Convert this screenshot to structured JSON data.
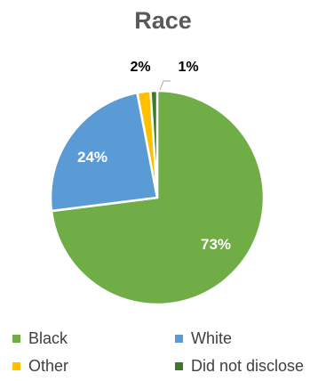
{
  "chart_data": {
    "type": "pie",
    "title": "Race",
    "categories": [
      "Black",
      "White",
      "Other",
      "Did not disclose"
    ],
    "values": [
      73,
      24,
      2,
      1
    ],
    "data_labels": [
      "73%",
      "24%",
      "2%",
      "1%"
    ],
    "colors": [
      "#70AD47",
      "#5B9BD5",
      "#FFC000",
      "#3D7A28"
    ],
    "label_colors": [
      "#ffffff",
      "#ffffff",
      "#000000",
      "#000000"
    ],
    "legend_position": "bottom"
  }
}
